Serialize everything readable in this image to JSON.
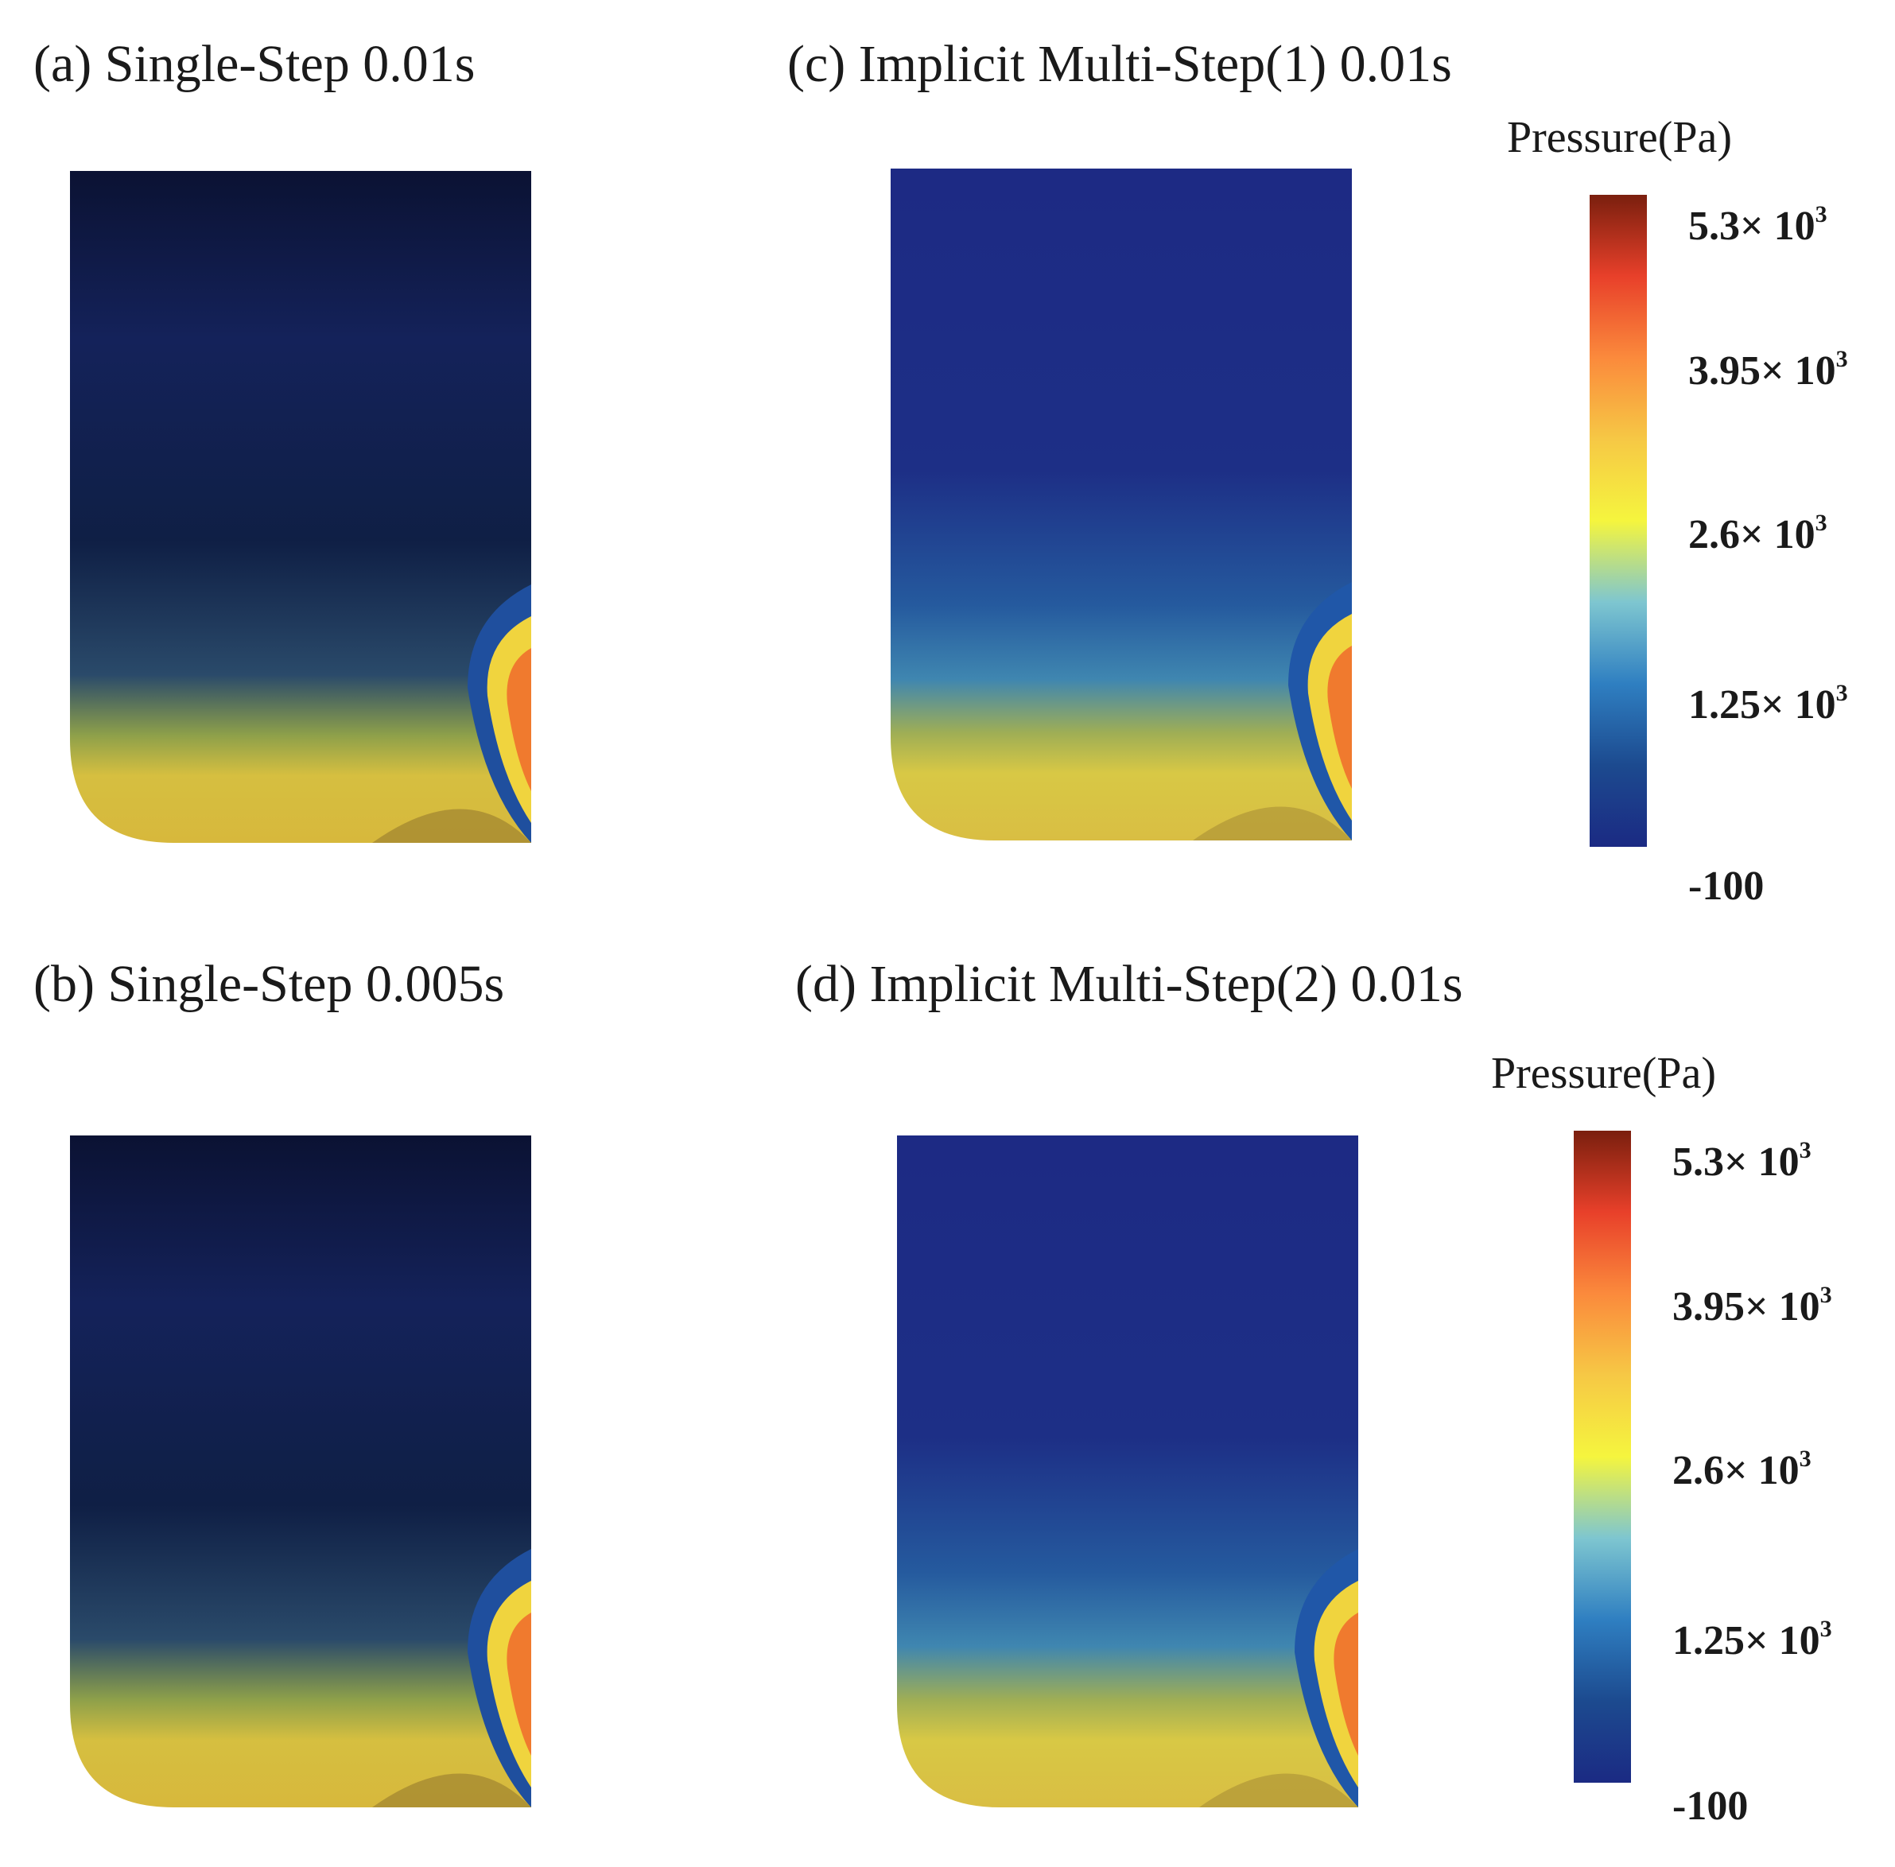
{
  "panels": {
    "a": {
      "title": "(a) Single-Step 0.01s"
    },
    "b": {
      "title": "(b) Single-Step 0.005s"
    },
    "c": {
      "title": "(c) Implicit Multi-Step(1) 0.01s"
    },
    "d": {
      "title": "(d) Implicit Multi-Step(2) 0.01s"
    }
  },
  "legend": {
    "title": "Pressure(Pa)",
    "ticks": [
      {
        "mant": "5.3× 10",
        "exp": "3"
      },
      {
        "mant": "3.95× 10",
        "exp": "3"
      },
      {
        "mant": "2.6× 10",
        "exp": "3"
      },
      {
        "mant": "1.25× 10",
        "exp": "3"
      },
      {
        "mant": "-100",
        "exp": ""
      }
    ],
    "colors": [
      "#7a1f0e",
      "#e8402a",
      "#fb8a3c",
      "#f6c845",
      "#f5f53e",
      "#7ec6d0",
      "#2f7fc1",
      "#1c4a8f",
      "#1b2a83"
    ]
  }
}
